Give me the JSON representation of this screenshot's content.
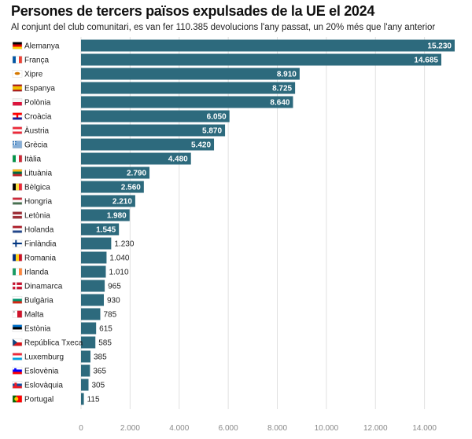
{
  "chart_data": {
    "type": "bar",
    "orientation": "horizontal",
    "title": "Persones de tercers països expulsades de la UE el 2024",
    "subtitle": "Al conjunt del club comunitari, es van fer 110.385 devolucions l'any passat, un 20% més que l'any anterior",
    "categories": [
      "Alemanya",
      "França",
      "Xipre",
      "Espanya",
      "Polònia",
      "Croàcia",
      "Àustria",
      "Grècia",
      "Itàlia",
      "Lituània",
      "Bèlgica",
      "Hongria",
      "Letònia",
      "Holanda",
      "Finlàndia",
      "Romania",
      "Irlanda",
      "Dinamarca",
      "Bulgària",
      "Malta",
      "Estònia",
      "República Txeca",
      "Luxemburg",
      "Eslovènia",
      "Eslovàquia",
      "Portugal"
    ],
    "values": [
      15230,
      14685,
      8910,
      8725,
      8640,
      6050,
      5870,
      5420,
      4480,
      2790,
      2560,
      2210,
      1980,
      1545,
      1230,
      1040,
      1010,
      965,
      930,
      785,
      615,
      585,
      385,
      365,
      305,
      115
    ],
    "value_labels": [
      "15.230",
      "14.685",
      "8.910",
      "8.725",
      "8.640",
      "6.050",
      "5.870",
      "5.420",
      "4.480",
      "2.790",
      "2.560",
      "2.210",
      "1.980",
      "1.545",
      "1.230",
      "1.040",
      "1.010",
      "965",
      "930",
      "785",
      "615",
      "585",
      "385",
      "365",
      "305",
      "115"
    ],
    "flag_icons": [
      "flag-de-icon",
      "flag-fr-icon",
      "flag-cy-icon",
      "flag-es-icon",
      "flag-pl-icon",
      "flag-hr-icon",
      "flag-at-icon",
      "flag-gr-icon",
      "flag-it-icon",
      "flag-lt-icon",
      "flag-be-icon",
      "flag-hu-icon",
      "flag-lv-icon",
      "flag-nl-icon",
      "flag-fi-icon",
      "flag-ro-icon",
      "flag-ie-icon",
      "flag-dk-icon",
      "flag-bg-icon",
      "flag-mt-icon",
      "flag-ee-icon",
      "flag-cz-icon",
      "flag-lu-icon",
      "flag-si-icon",
      "flag-sk-icon",
      "flag-pt-icon"
    ],
    "xlim": [
      0,
      15230
    ],
    "x_ticks": [
      0,
      2000,
      4000,
      6000,
      8000,
      10000,
      12000,
      14000
    ],
    "x_tick_labels": [
      "0",
      "2.000",
      "4.000",
      "6.000",
      "8.000",
      "10.000",
      "12.000",
      "14.000"
    ],
    "grid": true,
    "bar_color": "#2d6a7d"
  }
}
